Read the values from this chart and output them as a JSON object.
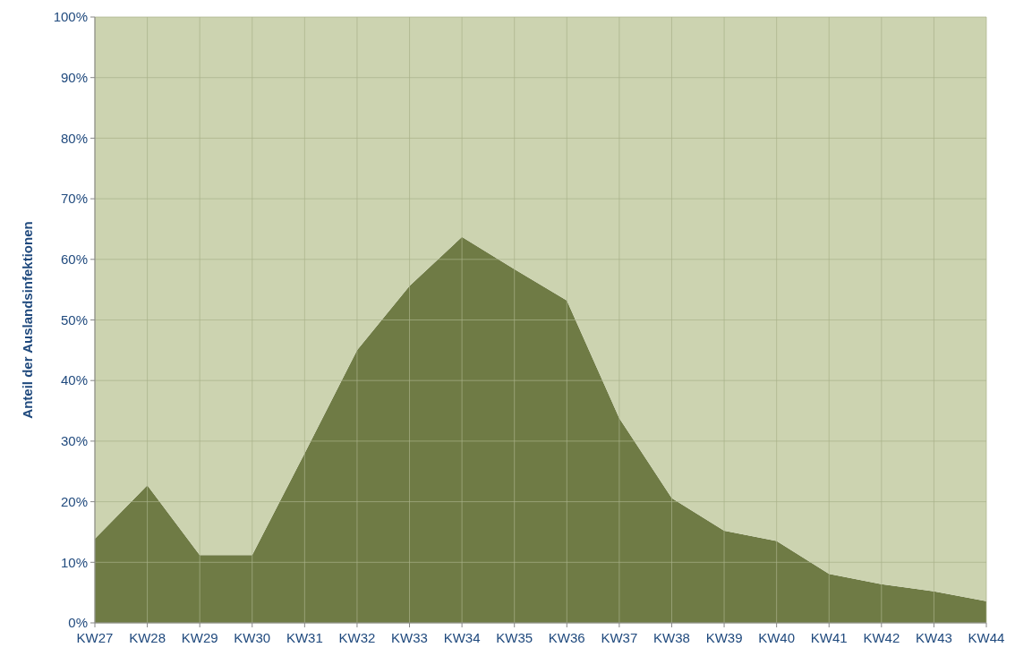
{
  "chart_data": {
    "type": "area",
    "stacked": true,
    "ylabel": "Anteil der Auslandsinfektionen",
    "categories": [
      "KW27",
      "KW28",
      "KW29",
      "KW30",
      "KW31",
      "KW32",
      "KW33",
      "KW34",
      "KW35",
      "KW36",
      "KW37",
      "KW38",
      "KW39",
      "KW40",
      "KW41",
      "KW42",
      "KW43",
      "KW44"
    ],
    "series": [
      {
        "color": "#6f7b45",
        "values": [
          13.9,
          22.7,
          11.2,
          11.2,
          28,
          45,
          55.6,
          63.7,
          58.4,
          53.2,
          33.8,
          20.6,
          15.2,
          13.5,
          8.1,
          6.4,
          5.2,
          3.6
        ]
      },
      {
        "color": "#ccd3b0",
        "values": [
          86.1,
          77.3,
          88.8,
          88.8,
          72,
          55,
          44.4,
          36.3,
          41.6,
          46.8,
          66.2,
          79.4,
          84.8,
          86.5,
          91.9,
          93.6,
          94.8,
          96.4
        ]
      }
    ],
    "ylim": [
      0,
      100
    ],
    "yticks": [
      {
        "value": 0,
        "label": "0%"
      },
      {
        "value": 10,
        "label": "10%"
      },
      {
        "value": 20,
        "label": "20%"
      },
      {
        "value": 30,
        "label": "30%"
      },
      {
        "value": 40,
        "label": "40%"
      },
      {
        "value": 50,
        "label": "50%"
      },
      {
        "value": 60,
        "label": "60%"
      },
      {
        "value": 70,
        "label": "70%"
      },
      {
        "value": 80,
        "label": "80%"
      },
      {
        "value": 90,
        "label": "90%"
      },
      {
        "value": 100,
        "label": "100%"
      }
    ],
    "grid": true
  }
}
